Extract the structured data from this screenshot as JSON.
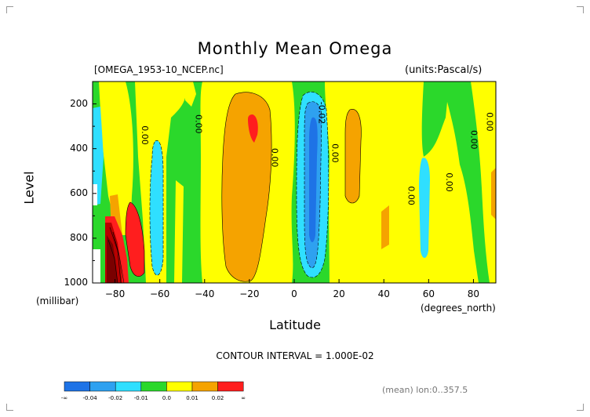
{
  "title": "Monthly Mean Omega",
  "file_label": "[OMEGA_1953-10_NCEP.nc]",
  "units_label": "(units:Pascal/s)",
  "ylabel": "Level",
  "yunit": "(millibar)",
  "xlabel": "Latitude",
  "xunit": "(degrees_north)",
  "contour_interval": "CONTOUR INTERVAL = 1.000E-02",
  "mean_label": "(mean) lon:0..357.5",
  "colorbar": {
    "colors": [
      "#1e73e6",
      "#2ea1f0",
      "#2fdfff",
      "#2bd82b",
      "#ffff00",
      "#f5a300",
      "#ff1e1e"
    ],
    "labels": [
      "-∞",
      "-0.04",
      "-0.02",
      "-0.01",
      "0.0",
      "0.01",
      "0.02",
      "∞"
    ]
  },
  "chart_data": {
    "type": "contour",
    "title": "Monthly Mean Omega",
    "xlabel": "Latitude",
    "ylabel": "Level",
    "x_unit": "degrees_north",
    "y_unit": "millibar",
    "xlim": [
      -90,
      90
    ],
    "ylim": [
      1000,
      100
    ],
    "x_ticks": [
      "-80",
      "-60",
      "-40",
      "-20",
      "0",
      "20",
      "40",
      "60",
      "80"
    ],
    "y_ticks": [
      "200",
      "400",
      "600",
      "800",
      "1000"
    ],
    "contour_interval": 0.01,
    "units": "Pascal/s",
    "contour_labels": [
      {
        "text": "0.00",
        "lat": -68,
        "level": 340
      },
      {
        "text": "0.00",
        "lat": -44,
        "level": 290
      },
      {
        "text": "0.00",
        "lat": -10,
        "level": 440
      },
      {
        "text": "-0.02",
        "lat": 11,
        "level": 240
      },
      {
        "text": "0.00",
        "lat": 17,
        "level": 420
      },
      {
        "text": "0.00",
        "lat": 51,
        "level": 610
      },
      {
        "text": "0.00",
        "lat": 68,
        "level": 550
      },
      {
        "text": "0.00",
        "lat": 79,
        "level": 360
      },
      {
        "text": "0.00",
        "lat": 86,
        "level": 280
      }
    ],
    "features": [
      {
        "value_range": "0.00..0.01",
        "lat_range": [
          -30,
          -8
        ],
        "level_range": [
          200,
          980
        ]
      },
      {
        "value_range": "> 0.02",
        "lat_range": [
          -20,
          -16
        ],
        "level_range": [
          260,
          380
        ]
      },
      {
        "value_range": "-0.04..-0.02",
        "lat_range": [
          3,
          14
        ],
        "level_range": [
          160,
          910
        ]
      },
      {
        "value_range": "-0.02..-0.01",
        "lat_range": [
          -62,
          -57
        ],
        "level_range": [
          320,
          960
        ]
      },
      {
        "value_range": "> 0.02",
        "lat_range": [
          -82,
          -70
        ],
        "level_range": [
          660,
          1000
        ]
      },
      {
        "value_range": "0.00..0.01",
        "lat_range": [
          22,
          30
        ],
        "level_range": [
          200,
          600
        ]
      }
    ]
  }
}
